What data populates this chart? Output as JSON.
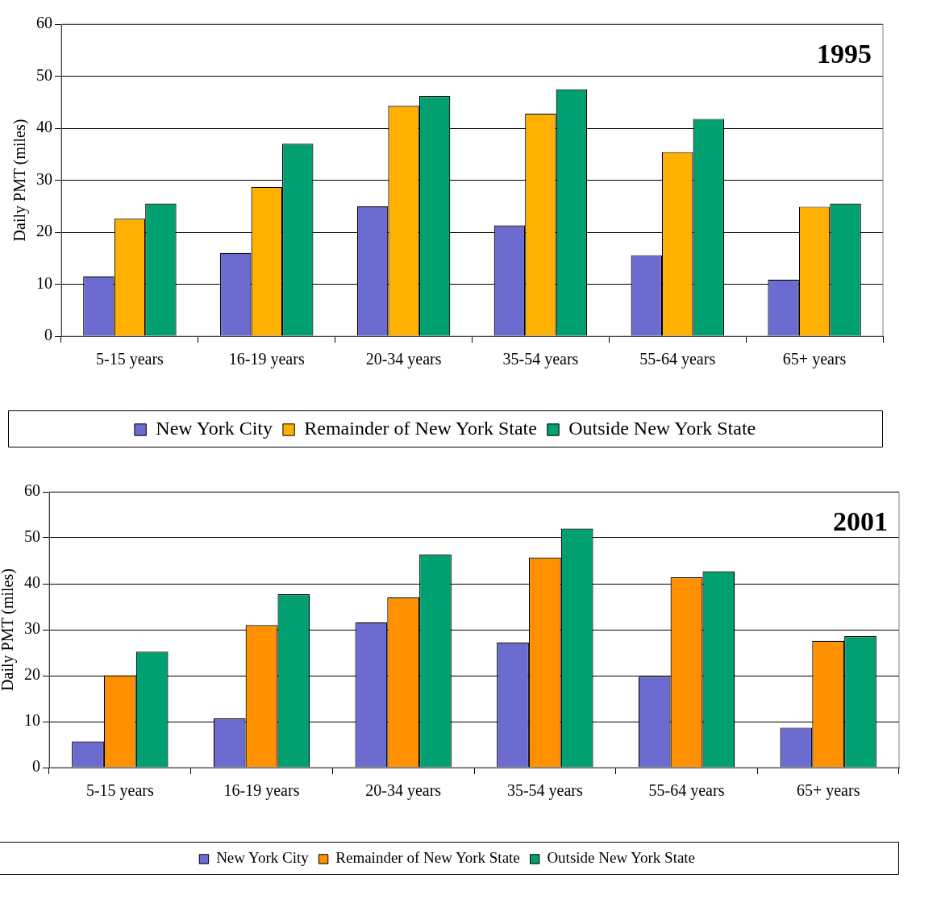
{
  "chart_data": [
    {
      "type": "bar",
      "ylabel": "Daily PMT (miles)",
      "annotations": [
        "1995"
      ],
      "categories": [
        "5-15 years",
        "16-19 years",
        "20-34 years",
        "35-54 years",
        "55-64 years",
        "65+ years"
      ],
      "series": [
        {
          "name": "New York City",
          "color": "#6b6bd0",
          "values": [
            11.5,
            16,
            25,
            21.3,
            15.6,
            10.9
          ]
        },
        {
          "name": "Remainder of New York State",
          "color": "#ffb000",
          "values": [
            22.6,
            28.7,
            44.3,
            42.8,
            35.4,
            24.9
          ]
        },
        {
          "name": "Outside New York State",
          "color": "#00a070",
          "values": [
            25.5,
            37,
            46.2,
            47.5,
            41.8,
            25.5
          ]
        }
      ],
      "ylim": [
        0,
        60
      ],
      "yticks": [
        0,
        10,
        20,
        30,
        40,
        50,
        60
      ],
      "grid": "y",
      "legend": "bottom"
    },
    {
      "type": "bar",
      "ylabel": "Daily PMT (miles)",
      "annotations": [
        "2001"
      ],
      "categories": [
        "5-15 years",
        "16-19 years",
        "20-34 years",
        "35-54 years",
        "55-64 years",
        "65+ years"
      ],
      "series": [
        {
          "name": "New York City",
          "color": "#6b6bd0",
          "values": [
            5.7,
            10.7,
            31.6,
            27.2,
            19.8,
            8.7
          ]
        },
        {
          "name": "Remainder of New York State",
          "color": "#ff9000",
          "values": [
            20.1,
            31,
            37,
            45.7,
            41.4,
            27.6
          ]
        },
        {
          "name": "Outside New York State",
          "color": "#00a070",
          "values": [
            25.2,
            37.7,
            46.4,
            52,
            42.7,
            28.6
          ]
        }
      ],
      "ylim": [
        0,
        60
      ],
      "yticks": [
        0,
        10,
        20,
        30,
        40,
        50,
        60
      ],
      "grid": "y",
      "legend": "bottom"
    }
  ]
}
